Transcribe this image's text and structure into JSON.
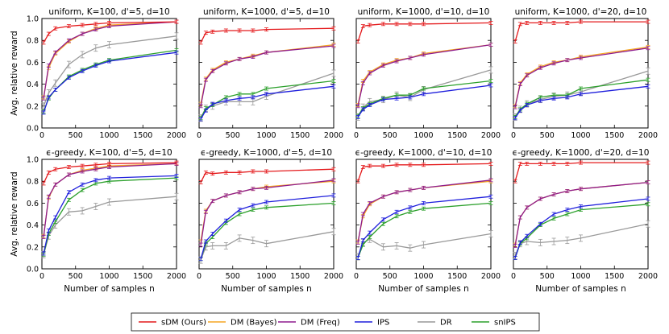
{
  "figure": {
    "ylabel": "Avg. relative reward",
    "xlabel": "Number of samples n"
  },
  "legend": [
    {
      "name": "sDM (Ours)",
      "color": "#e41a1c"
    },
    {
      "name": "DM (Bayes)",
      "color": "#f5a623"
    },
    {
      "name": "DM (Freq)",
      "color": "#8e1b8e"
    },
    {
      "name": "IPS",
      "color": "#1f1fdc"
    },
    {
      "name": "DR",
      "color": "#999999"
    },
    {
      "name": "snIPS",
      "color": "#2ca02c"
    }
  ],
  "chart_data": [
    {
      "type": "line",
      "title": "uniform, K=100, d'=5, d=10",
      "xlim": [
        0,
        2000
      ],
      "ylim": [
        0,
        1.0
      ],
      "xticks": [
        "0",
        "500",
        "1000",
        "1500",
        "2000"
      ],
      "yticks": [
        "0.0",
        "0.2",
        "0.4",
        "0.6",
        "0.8",
        "1.0"
      ],
      "x": [
        25,
        100,
        200,
        400,
        600,
        800,
        1000,
        2000
      ],
      "series": [
        {
          "name": "sDM (Ours)",
          "values": [
            0.78,
            0.86,
            0.91,
            0.93,
            0.94,
            0.95,
            0.96,
            0.97
          ]
        },
        {
          "name": "DM (Bayes)",
          "values": [
            0.28,
            0.55,
            0.68,
            0.79,
            0.86,
            0.91,
            0.94,
            0.97
          ]
        },
        {
          "name": "DM (Freq)",
          "values": [
            0.27,
            0.57,
            0.69,
            0.8,
            0.86,
            0.9,
            0.93,
            0.97
          ]
        },
        {
          "name": "IPS",
          "values": [
            0.14,
            0.28,
            0.35,
            0.46,
            0.52,
            0.57,
            0.61,
            0.69
          ]
        },
        {
          "name": "DR",
          "values": [
            0.2,
            0.32,
            0.41,
            0.58,
            0.67,
            0.73,
            0.76,
            0.84
          ]
        },
        {
          "name": "snIPS",
          "values": [
            0.15,
            0.27,
            0.35,
            0.47,
            0.53,
            0.58,
            0.62,
            0.71
          ]
        }
      ]
    },
    {
      "type": "line",
      "title": "uniform, K=1000, d'=5, d=10",
      "xlim": [
        0,
        2000
      ],
      "ylim": [
        0,
        1.0
      ],
      "xticks": [
        "0",
        "500",
        "1000",
        "1500",
        "2000"
      ],
      "yticks": [
        "0.0",
        "0.2",
        "0.4",
        "0.6",
        "0.8",
        "1.0"
      ],
      "x": [
        25,
        100,
        200,
        400,
        600,
        800,
        1000,
        2000
      ],
      "series": [
        {
          "name": "sDM (Ours)",
          "values": [
            0.78,
            0.87,
            0.88,
            0.89,
            0.89,
            0.89,
            0.9,
            0.91
          ]
        },
        {
          "name": "DM (Bayes)",
          "values": [
            0.22,
            0.45,
            0.53,
            0.6,
            0.63,
            0.66,
            0.69,
            0.76
          ]
        },
        {
          "name": "DM (Freq)",
          "values": [
            0.2,
            0.44,
            0.52,
            0.59,
            0.63,
            0.65,
            0.69,
            0.75
          ]
        },
        {
          "name": "IPS",
          "values": [
            0.08,
            0.16,
            0.22,
            0.25,
            0.27,
            0.28,
            0.31,
            0.38
          ]
        },
        {
          "name": "DR",
          "values": [
            0.09,
            0.18,
            0.2,
            0.24,
            0.24,
            0.24,
            0.29,
            0.5
          ]
        },
        {
          "name": "snIPS",
          "values": [
            0.09,
            0.18,
            0.21,
            0.28,
            0.31,
            0.31,
            0.36,
            0.43
          ]
        }
      ]
    },
    {
      "type": "line",
      "title": "uniform, K=1000, d'=10, d=10",
      "xlim": [
        0,
        2000
      ],
      "ylim": [
        0,
        1.0
      ],
      "xticks": [
        "0",
        "500",
        "1000",
        "1500",
        "2000"
      ],
      "yticks": [
        "0.0",
        "0.2",
        "0.4",
        "0.6",
        "0.8",
        "1.0"
      ],
      "x": [
        25,
        100,
        200,
        400,
        600,
        800,
        1000,
        2000
      ],
      "series": [
        {
          "name": "sDM (Ours)",
          "values": [
            0.79,
            0.93,
            0.94,
            0.95,
            0.95,
            0.95,
            0.95,
            0.96
          ]
        },
        {
          "name": "DM (Bayes)",
          "values": [
            0.21,
            0.43,
            0.51,
            0.58,
            0.62,
            0.64,
            0.68,
            0.76
          ]
        },
        {
          "name": "DM (Freq)",
          "values": [
            0.2,
            0.41,
            0.5,
            0.57,
            0.61,
            0.64,
            0.67,
            0.76
          ]
        },
        {
          "name": "IPS",
          "values": [
            0.1,
            0.17,
            0.21,
            0.26,
            0.27,
            0.28,
            0.31,
            0.39
          ]
        },
        {
          "name": "DR",
          "values": [
            0.1,
            0.19,
            0.24,
            0.26,
            0.3,
            0.28,
            0.35,
            0.53
          ]
        },
        {
          "name": "snIPS",
          "values": [
            0.11,
            0.18,
            0.22,
            0.27,
            0.3,
            0.3,
            0.36,
            0.43
          ]
        }
      ]
    },
    {
      "type": "line",
      "title": "uniform, K=1000, d'=20, d=10",
      "xlim": [
        0,
        2000
      ],
      "ylim": [
        0,
        1.0
      ],
      "xticks": [
        "0",
        "500",
        "1000",
        "1500",
        "2000"
      ],
      "yticks": [
        "0.0",
        "0.2",
        "0.4",
        "0.6",
        "0.8",
        "1.0"
      ],
      "x": [
        25,
        100,
        200,
        400,
        600,
        800,
        1000,
        2000
      ],
      "series": [
        {
          "name": "sDM (Ours)",
          "values": [
            0.79,
            0.95,
            0.96,
            0.96,
            0.96,
            0.96,
            0.97,
            0.97
          ]
        },
        {
          "name": "DM (Bayes)",
          "values": [
            0.2,
            0.41,
            0.49,
            0.56,
            0.6,
            0.62,
            0.65,
            0.74
          ]
        },
        {
          "name": "DM (Freq)",
          "values": [
            0.19,
            0.4,
            0.48,
            0.55,
            0.59,
            0.62,
            0.64,
            0.73
          ]
        },
        {
          "name": "IPS",
          "values": [
            0.09,
            0.16,
            0.21,
            0.25,
            0.27,
            0.28,
            0.31,
            0.38
          ]
        },
        {
          "name": "DR",
          "values": [
            0.1,
            0.17,
            0.22,
            0.26,
            0.29,
            0.3,
            0.33,
            0.52
          ]
        },
        {
          "name": "snIPS",
          "values": [
            0.1,
            0.17,
            0.22,
            0.28,
            0.3,
            0.3,
            0.36,
            0.44
          ]
        }
      ]
    },
    {
      "type": "line",
      "title": "ϵ-greedy, K=100, d'=5, d=10",
      "xlim": [
        0,
        2000
      ],
      "ylim": [
        0,
        1.0
      ],
      "xticks": [
        "0",
        "500",
        "1000",
        "1500",
        "2000"
      ],
      "yticks": [
        "0.0",
        "0.2",
        "0.4",
        "0.6",
        "0.8",
        "1.0"
      ],
      "x": [
        25,
        100,
        200,
        400,
        600,
        800,
        1000,
        2000
      ],
      "series": [
        {
          "name": "sDM (Ours)",
          "values": [
            0.78,
            0.88,
            0.91,
            0.93,
            0.94,
            0.95,
            0.96,
            0.97
          ]
        },
        {
          "name": "DM (Bayes)",
          "values": [
            0.3,
            0.65,
            0.77,
            0.86,
            0.9,
            0.92,
            0.94,
            0.96
          ]
        },
        {
          "name": "DM (Freq)",
          "values": [
            0.29,
            0.66,
            0.77,
            0.86,
            0.89,
            0.91,
            0.93,
            0.96
          ]
        },
        {
          "name": "IPS",
          "values": [
            0.14,
            0.35,
            0.47,
            0.7,
            0.77,
            0.81,
            0.83,
            0.85
          ]
        },
        {
          "name": "DR",
          "values": [
            0.13,
            0.3,
            0.4,
            0.52,
            0.53,
            0.57,
            0.61,
            0.66
          ]
        },
        {
          "name": "snIPS",
          "values": [
            0.13,
            0.32,
            0.43,
            0.63,
            0.72,
            0.78,
            0.8,
            0.83
          ]
        }
      ]
    },
    {
      "type": "line",
      "title": "ϵ-greedy, K=1000, d'=5, d=10",
      "xlim": [
        0,
        2000
      ],
      "ylim": [
        0,
        1.0
      ],
      "xticks": [
        "0",
        "500",
        "1000",
        "1500",
        "2000"
      ],
      "yticks": [
        "0.0",
        "0.2",
        "0.4",
        "0.6",
        "0.8",
        "1.0"
      ],
      "x": [
        25,
        100,
        200,
        400,
        600,
        800,
        1000,
        2000
      ],
      "series": [
        {
          "name": "sDM (Ours)",
          "values": [
            0.79,
            0.88,
            0.87,
            0.88,
            0.88,
            0.89,
            0.89,
            0.91
          ]
        },
        {
          "name": "DM (Bayes)",
          "values": [
            0.25,
            0.53,
            0.62,
            0.67,
            0.7,
            0.73,
            0.75,
            0.8
          ]
        },
        {
          "name": "DM (Freq)",
          "values": [
            0.22,
            0.52,
            0.62,
            0.67,
            0.7,
            0.73,
            0.74,
            0.81
          ]
        },
        {
          "name": "IPS",
          "values": [
            0.09,
            0.25,
            0.32,
            0.44,
            0.54,
            0.58,
            0.61,
            0.67
          ]
        },
        {
          "name": "DR",
          "values": [
            0.08,
            0.2,
            0.21,
            0.21,
            0.28,
            0.26,
            0.23,
            0.34
          ]
        },
        {
          "name": "snIPS",
          "values": [
            0.09,
            0.23,
            0.29,
            0.42,
            0.5,
            0.54,
            0.56,
            0.6
          ]
        }
      ]
    },
    {
      "type": "line",
      "title": "ϵ-greedy, K=1000, d'=10, d=10",
      "xlim": [
        0,
        2000
      ],
      "ylim": [
        0,
        1.0
      ],
      "xticks": [
        "0",
        "500",
        "1000",
        "1500",
        "2000"
      ],
      "yticks": [
        "0.0",
        "0.2",
        "0.4",
        "0.6",
        "0.8",
        "1.0"
      ],
      "x": [
        25,
        100,
        200,
        400,
        600,
        800,
        1000,
        2000
      ],
      "series": [
        {
          "name": "sDM (Ours)",
          "values": [
            0.8,
            0.93,
            0.94,
            0.94,
            0.95,
            0.95,
            0.95,
            0.96
          ]
        },
        {
          "name": "DM (Bayes)",
          "values": [
            0.25,
            0.48,
            0.59,
            0.66,
            0.7,
            0.72,
            0.74,
            0.8
          ]
        },
        {
          "name": "DM (Freq)",
          "values": [
            0.24,
            0.5,
            0.6,
            0.66,
            0.7,
            0.72,
            0.74,
            0.81
          ]
        },
        {
          "name": "IPS",
          "values": [
            0.1,
            0.26,
            0.33,
            0.45,
            0.52,
            0.56,
            0.6,
            0.66
          ]
        },
        {
          "name": "DR",
          "values": [
            0.11,
            0.24,
            0.27,
            0.2,
            0.21,
            0.19,
            0.22,
            0.32
          ]
        },
        {
          "name": "snIPS",
          "values": [
            0.1,
            0.22,
            0.29,
            0.41,
            0.48,
            0.52,
            0.55,
            0.6
          ]
        }
      ]
    },
    {
      "type": "line",
      "title": "ϵ-greedy, K=1000, d'=20, d=10",
      "xlim": [
        0,
        2000
      ],
      "ylim": [
        0,
        1.0
      ],
      "xticks": [
        "0",
        "500",
        "1000",
        "1500",
        "2000"
      ],
      "yticks": [
        "0.0",
        "0.2",
        "0.4",
        "0.6",
        "0.8",
        "1.0"
      ],
      "x": [
        25,
        100,
        200,
        400,
        600,
        800,
        1000,
        2000
      ],
      "series": [
        {
          "name": "sDM (Ours)",
          "values": [
            0.8,
            0.96,
            0.96,
            0.96,
            0.96,
            0.96,
            0.97,
            0.97
          ]
        },
        {
          "name": "DM (Bayes)",
          "values": [
            0.22,
            0.47,
            0.56,
            0.64,
            0.68,
            0.71,
            0.73,
            0.79
          ]
        },
        {
          "name": "DM (Freq)",
          "values": [
            0.21,
            0.47,
            0.56,
            0.64,
            0.68,
            0.71,
            0.73,
            0.79
          ]
        },
        {
          "name": "IPS",
          "values": [
            0.1,
            0.24,
            0.3,
            0.41,
            0.5,
            0.54,
            0.57,
            0.64
          ]
        },
        {
          "name": "DR",
          "values": [
            0.12,
            0.23,
            0.25,
            0.24,
            0.25,
            0.26,
            0.28,
            0.41
          ]
        },
        {
          "name": "snIPS",
          "values": [
            0.1,
            0.23,
            0.28,
            0.4,
            0.46,
            0.5,
            0.54,
            0.59
          ]
        }
      ]
    }
  ]
}
